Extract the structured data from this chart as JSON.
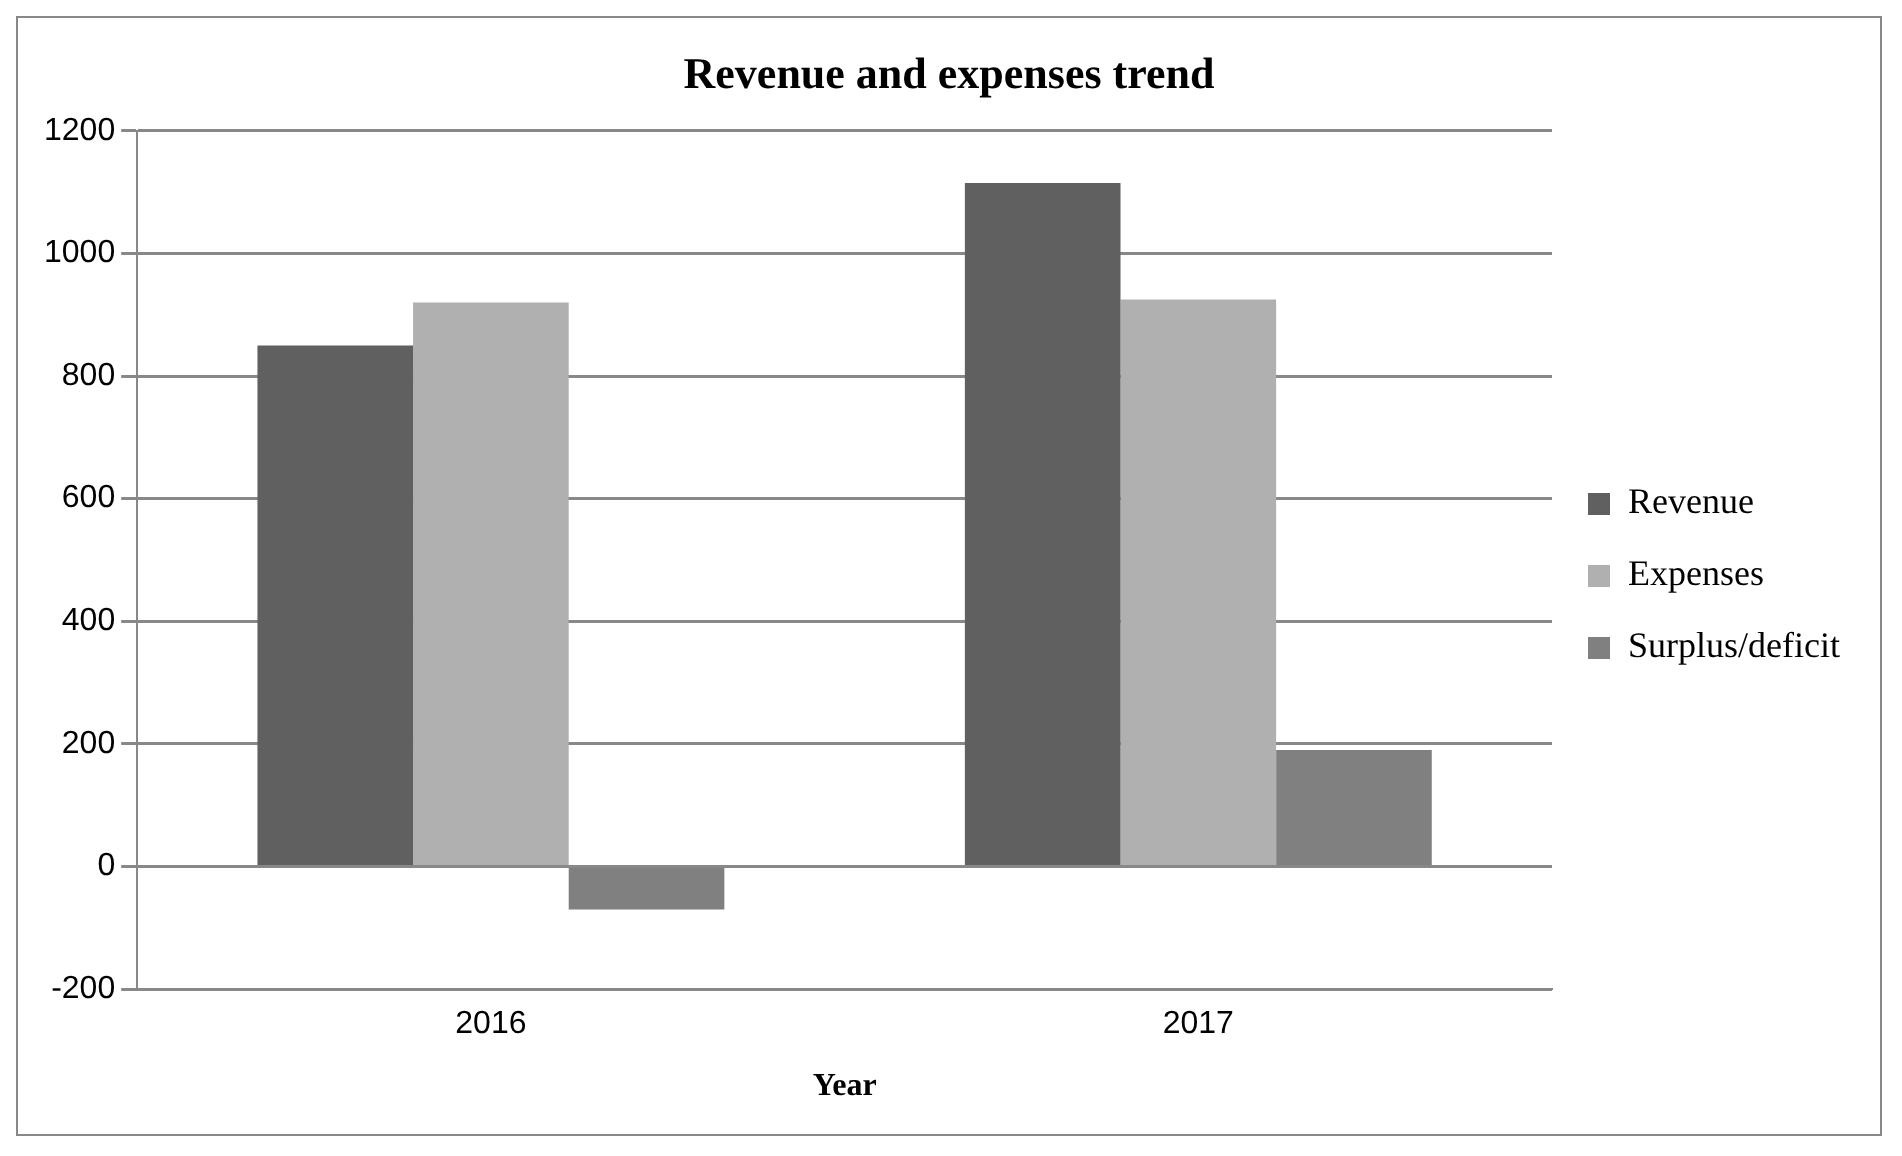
{
  "chart_data": {
    "type": "bar",
    "title": "Revenue and expenses trend",
    "xlabel": "Year",
    "categories": [
      "2016",
      "2017"
    ],
    "series": [
      {
        "name": "Revenue",
        "color": "#606060",
        "values": [
          850,
          1115
        ]
      },
      {
        "name": "Expenses",
        "color": "#b0b0b0",
        "values": [
          920,
          925
        ]
      },
      {
        "name": "Surplus/deficit",
        "color": "#808080",
        "values": [
          -70,
          190
        ]
      }
    ],
    "ylim": [
      -200,
      1200
    ],
    "yticks": [
      -200,
      0,
      200,
      400,
      600,
      800,
      1000,
      1200
    ],
    "grid": "y",
    "legend": "right"
  }
}
